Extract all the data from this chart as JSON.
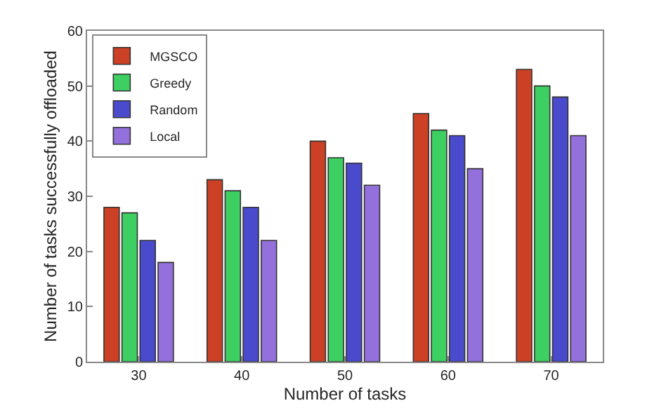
{
  "chart_data": {
    "type": "bar",
    "xlabel": "Number of tasks",
    "ylabel": "Number of tasks successfully offloaded",
    "categories": [
      "30",
      "40",
      "50",
      "60",
      "70"
    ],
    "series": [
      {
        "name": "MGSCO",
        "color": "#cc4125",
        "values": [
          28,
          33,
          40,
          45,
          53
        ]
      },
      {
        "name": "Greedy",
        "color": "#3ecf62",
        "values": [
          27,
          31,
          37,
          42,
          50
        ]
      },
      {
        "name": "Random",
        "color": "#4a4acc",
        "values": [
          22,
          28,
          36,
          41,
          48
        ]
      },
      {
        "name": "Local",
        "color": "#9370db",
        "values": [
          18,
          22,
          32,
          35,
          41
        ]
      }
    ],
    "ylim": [
      0,
      60
    ],
    "yticks": [
      0,
      10,
      20,
      30,
      40,
      50,
      60
    ],
    "legend": "top left"
  }
}
